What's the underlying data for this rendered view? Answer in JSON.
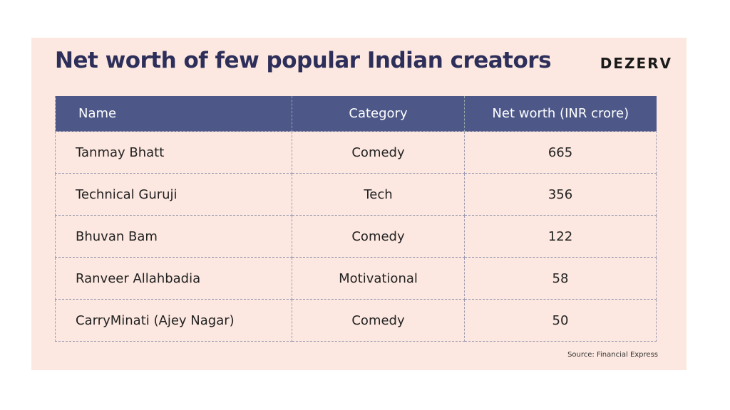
{
  "header": {
    "title": "Net worth of few popular Indian creators",
    "brand": "DEZERV"
  },
  "table": {
    "columns": [
      "Name",
      "Category",
      "Net worth (INR crore)"
    ],
    "rows": [
      [
        "Tanmay Bhatt",
        "Comedy",
        665
      ],
      [
        "Technical Guruji",
        "Tech",
        356
      ],
      [
        "Bhuvan Bam",
        "Comedy",
        122
      ],
      [
        "Ranveer Allahbadia",
        "Motivational",
        58
      ],
      [
        "CarryMinati (Ajey Nagar)",
        "Comedy",
        50
      ]
    ]
  },
  "footer": {
    "source": "Source: Financial Express"
  }
}
